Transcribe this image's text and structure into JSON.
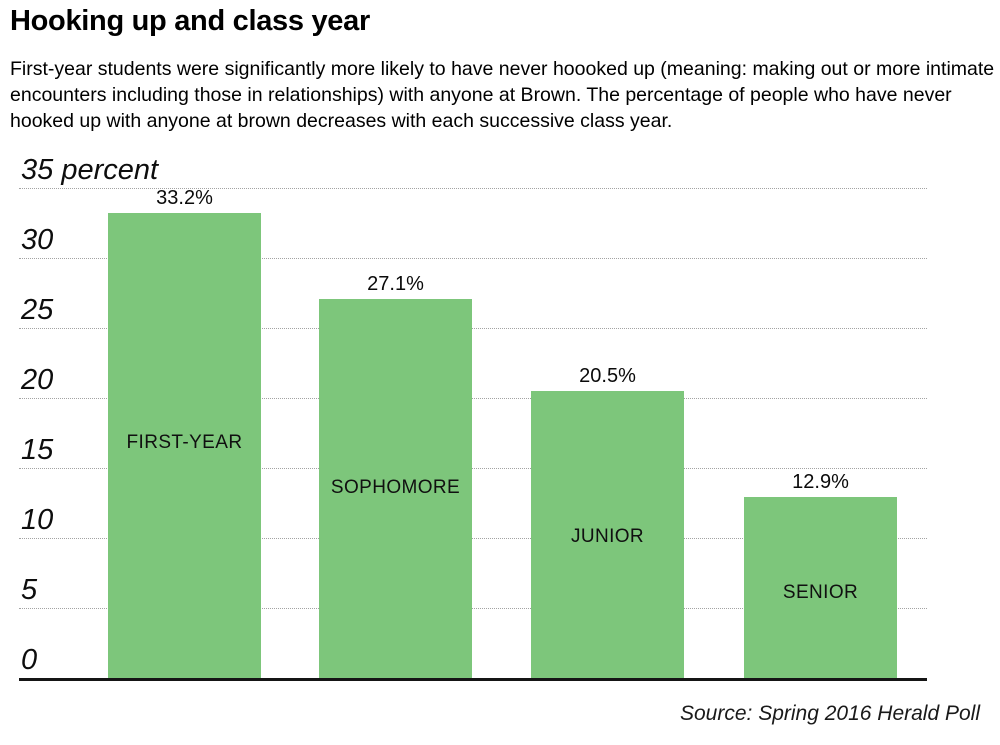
{
  "header": {
    "title": "Hooking up and class year",
    "description": "First-year students were significantly more likely to have never hoooked up (meaning: making out or more intimate encounters including those in relationships) with anyone at Brown. The percentage of people who have never hooked up with anyone at brown decreases with each successive class year."
  },
  "chart_data": {
    "type": "bar",
    "title": "Hooking up and class year",
    "categories": [
      "FIRST-YEAR",
      "SOPHOMORE",
      "JUNIOR",
      "SENIOR"
    ],
    "values": [
      33.2,
      27.1,
      20.5,
      12.9
    ],
    "value_labels": [
      "33.2%",
      "27.1%",
      "20.5%",
      "12.9%"
    ],
    "ylabel": "percent",
    "y_axis": {
      "min": 0,
      "max": 35,
      "tick_step": 5,
      "tick_values": [
        35,
        30,
        25,
        20,
        15,
        10,
        5,
        0
      ],
      "tick_labels": [
        "35 percent",
        "30",
        "25",
        "20",
        "15",
        "10",
        "5",
        "0"
      ]
    },
    "grid": "horizontal-dotted",
    "legend": "none",
    "bar_color": "#7dc67b",
    "source": "Source: Spring 2016 Herald Poll"
  },
  "footer": {
    "source": "Source: Spring 2016 Herald Poll"
  }
}
